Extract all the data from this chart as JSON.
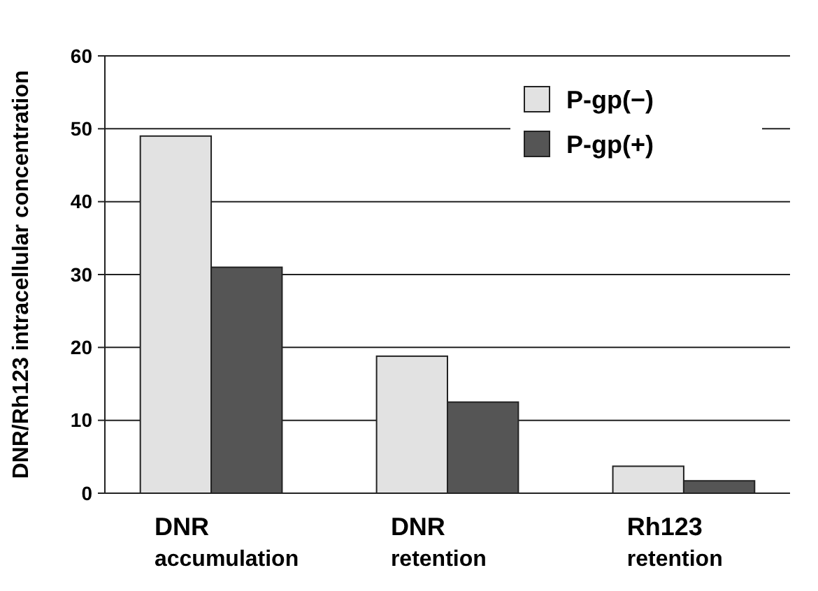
{
  "chart_data": {
    "type": "bar",
    "ylabel": "DNR/Rh123 intracellular concentration",
    "categories": [
      "DNR\naccumulation",
      "DNR\nretention",
      "Rh123\nretention"
    ],
    "series": [
      {
        "name": "P-gp(−)",
        "color": "#e2e2e2",
        "values": [
          49,
          18.8,
          3.7
        ]
      },
      {
        "name": "P-gp(+)",
        "color": "#555555",
        "values": [
          31,
          12.5,
          1.7
        ]
      }
    ],
    "ylim": [
      0,
      60
    ],
    "yticks": [
      0,
      10,
      20,
      30,
      40,
      50,
      60
    ],
    "grid": "y",
    "legend": "top right"
  }
}
